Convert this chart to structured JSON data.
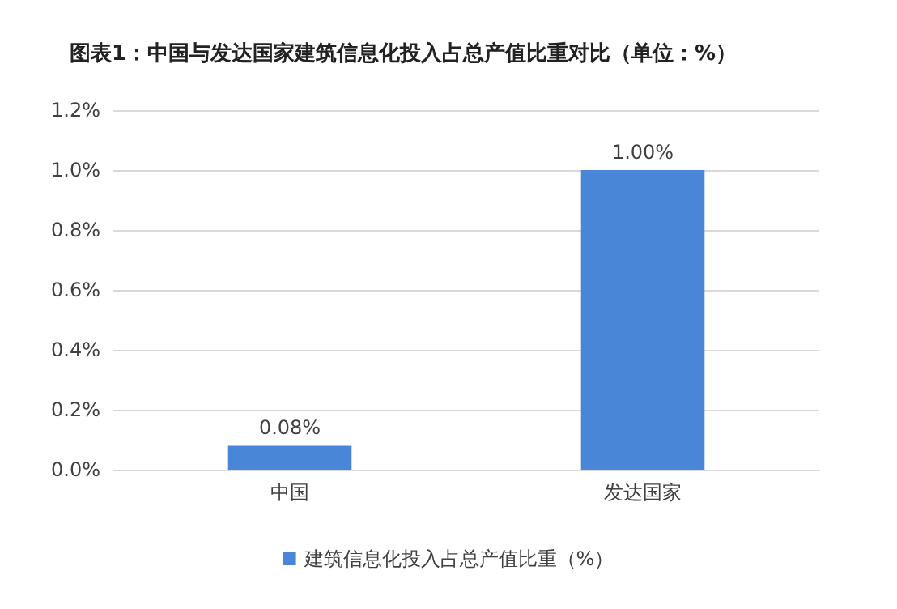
{
  "chart_data": {
    "type": "bar",
    "title": "图表1：中国与发达国家建筑信息化投入占总产值比重对比（单位：%）",
    "categories": [
      "中国",
      "发达国家"
    ],
    "series": [
      {
        "name": "建筑信息化投入占总产值比重（%）",
        "color": "#4a86d8",
        "values": [
          0.08,
          1.0
        ],
        "value_labels": [
          "0.08%",
          "1.00%"
        ]
      }
    ],
    "ylim": [
      0,
      1.2
    ],
    "yticks": [
      {
        "value": 0,
        "label": "0.0%"
      },
      {
        "value": 0.2,
        "label": "0.2%"
      },
      {
        "value": 0.4,
        "label": "0.4%"
      },
      {
        "value": 0.6,
        "label": "0.6%"
      },
      {
        "value": 0.8,
        "label": "0.8%"
      },
      {
        "value": 1.0,
        "label": "1.0%"
      },
      {
        "value": 1.2,
        "label": "1.2%"
      }
    ],
    "grid": "y",
    "legend": "bottom"
  }
}
